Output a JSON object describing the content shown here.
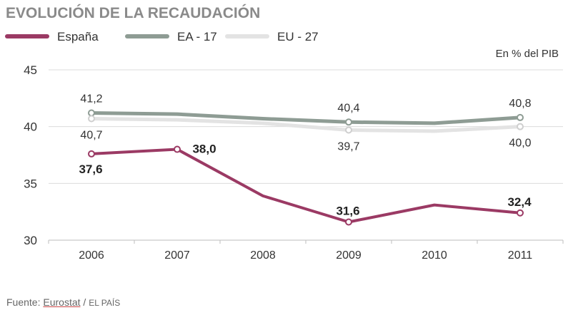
{
  "chart_data": {
    "type": "line",
    "title": "EVOLUCIÓN DE LA RECAUDACIÓN",
    "unit_label": "En % del PIB",
    "categories": [
      "2006",
      "2007",
      "2008",
      "2009",
      "2010",
      "2011"
    ],
    "ylim": [
      30,
      45
    ],
    "yticks": [
      30,
      35,
      40,
      45
    ],
    "grid": "horizontal",
    "legend_position": "top-left",
    "series": [
      {
        "name": "España",
        "color": "#9b3a64",
        "values": [
          37.6,
          38.0,
          33.9,
          31.6,
          33.1,
          32.4
        ]
      },
      {
        "name": "EA - 17",
        "color": "#8e9c94",
        "values": [
          41.2,
          41.1,
          40.7,
          40.4,
          40.3,
          40.8
        ]
      },
      {
        "name": "EU - 27",
        "color": "#e3e3e3",
        "values": [
          40.7,
          40.6,
          40.3,
          39.7,
          39.6,
          40.0
        ]
      }
    ],
    "annotations": [
      {
        "series": "España",
        "index": 0,
        "text": "37,6",
        "bold": true
      },
      {
        "series": "España",
        "index": 1,
        "text": "38,0",
        "bold": true
      },
      {
        "series": "España",
        "index": 3,
        "text": "31,6",
        "bold": true
      },
      {
        "series": "España",
        "index": 5,
        "text": "32,4",
        "bold": true
      },
      {
        "series": "EA - 17",
        "index": 0,
        "text": "41,2",
        "bold": false
      },
      {
        "series": "EA - 17",
        "index": 3,
        "text": "40,4",
        "bold": false
      },
      {
        "series": "EA - 17",
        "index": 5,
        "text": "40,8",
        "bold": false
      },
      {
        "series": "EU - 27",
        "index": 0,
        "text": "40,7",
        "bold": false
      },
      {
        "series": "EU - 27",
        "index": 3,
        "text": "39,7",
        "bold": false
      },
      {
        "series": "EU - 27",
        "index": 5,
        "text": "40,0",
        "bold": false
      }
    ]
  },
  "source": {
    "prefix": "Fuente: ",
    "link": "Eurostat",
    "separator": " / ",
    "brand": "EL PAÍS"
  }
}
